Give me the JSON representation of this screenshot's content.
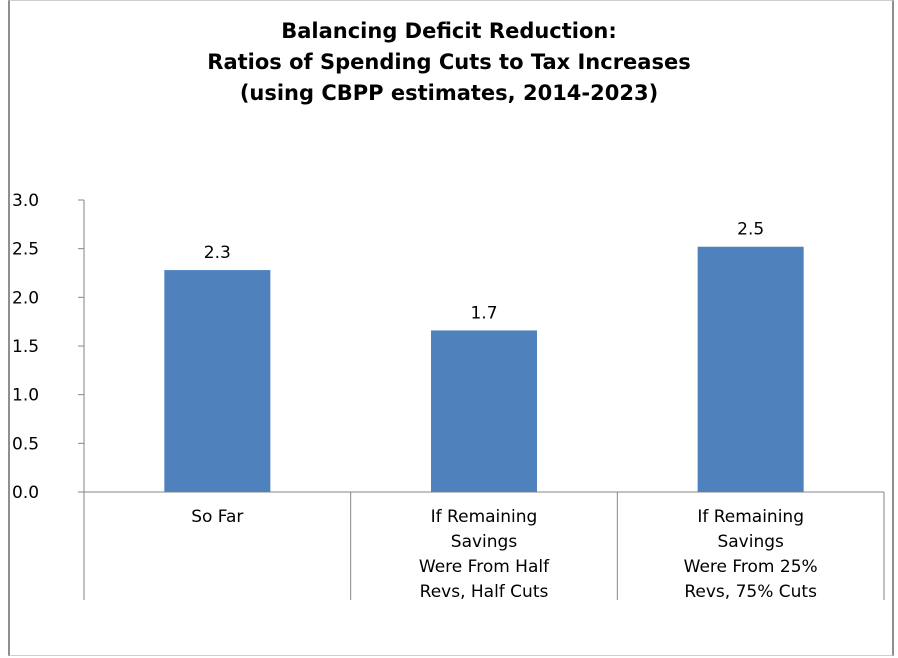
{
  "chart_data": {
    "type": "bar",
    "title_lines": [
      "Balancing Deficit Reduction:",
      "Ratios of Spending Cuts to Tax Increases",
      "(using CBPP estimates, 2014-2023)"
    ],
    "categories": [
      [
        "So Far"
      ],
      [
        "If Remaining",
        "Savings",
        "Were From Half",
        "Revs, Half Cuts"
      ],
      [
        "If Remaining",
        "Savings",
        "Were From 25%",
        "Revs, 75% Cuts"
      ]
    ],
    "values": [
      2.28,
      1.66,
      2.52
    ],
    "data_labels": [
      "2.3",
      "1.7",
      "2.5"
    ],
    "yticks": [
      "0.0",
      "0.5",
      "1.0",
      "1.5",
      "2.0",
      "2.5",
      "3.0"
    ],
    "ylim": [
      0,
      3
    ],
    "bar_color": "#4f81bd",
    "axis_color": "#868686",
    "grid": false,
    "legend": "none",
    "xlabel": "",
    "ylabel": ""
  }
}
